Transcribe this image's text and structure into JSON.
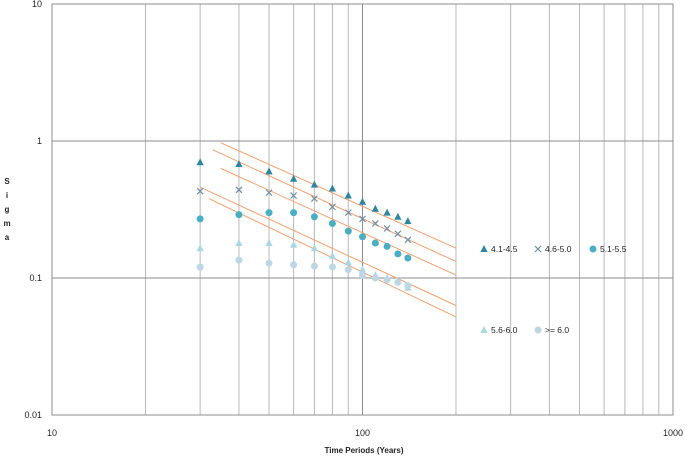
{
  "chart_data": {
    "type": "scatter",
    "title": "",
    "xlabel": "Time Periods (Years)",
    "ylabel": "Sigma",
    "ylabel_letters": [
      "S",
      "i",
      "g",
      "m",
      "a"
    ],
    "x_scale": "log",
    "y_scale": "log",
    "xlim": [
      10,
      1000
    ],
    "ylim": [
      0.01,
      10
    ],
    "x_tick_labels": [
      "10",
      "100",
      "1000"
    ],
    "y_tick_labels": [
      "0.01",
      "0.1",
      "1",
      "10"
    ],
    "grid": true,
    "legend_position": "right",
    "series": [
      {
        "name": "4.1-4.5",
        "marker": "triangle",
        "color": "#2E86A0",
        "x": [
          30,
          40,
          50,
          60,
          70,
          80,
          90,
          100,
          110,
          120,
          130,
          140
        ],
        "y": [
          0.7,
          0.68,
          0.6,
          0.53,
          0.48,
          0.45,
          0.4,
          0.36,
          0.32,
          0.3,
          0.28,
          0.26
        ]
      },
      {
        "name": "4.6-5.0",
        "marker": "x",
        "color": "#6E8FA8",
        "x": [
          30,
          40,
          50,
          60,
          70,
          80,
          90,
          100,
          110,
          120,
          130,
          140
        ],
        "y": [
          0.43,
          0.44,
          0.42,
          0.4,
          0.38,
          0.33,
          0.3,
          0.27,
          0.25,
          0.23,
          0.21,
          0.19
        ]
      },
      {
        "name": "5.1-5.5",
        "marker": "circle",
        "color": "#4AAFC2",
        "x": [
          30,
          40,
          50,
          60,
          70,
          80,
          90,
          100,
          110,
          120,
          130,
          140
        ],
        "y": [
          0.27,
          0.29,
          0.3,
          0.3,
          0.28,
          0.25,
          0.22,
          0.2,
          0.18,
          0.17,
          0.15,
          0.14
        ]
      },
      {
        "name": "5.6-6.0",
        "marker": "triangle",
        "color": "#A9D8E3",
        "x": [
          30,
          40,
          50,
          60,
          70,
          80,
          90,
          100,
          110,
          120,
          130,
          140
        ],
        "y": [
          0.165,
          0.18,
          0.18,
          0.175,
          0.165,
          0.145,
          0.13,
          0.115,
          0.105,
          0.1,
          0.095,
          0.085
        ]
      },
      {
        "name": ">= 6.0",
        "marker": "circle",
        "color": "#BDD7E4",
        "x": [
          30,
          40,
          50,
          60,
          70,
          80,
          90,
          100,
          110,
          120,
          130,
          140
        ],
        "y": [
          0.12,
          0.135,
          0.128,
          0.125,
          0.122,
          0.12,
          0.115,
          0.105,
          0.1,
          0.097,
          0.093,
          0.088
        ]
      }
    ],
    "trendlines": {
      "color": "#F0A070",
      "lines": [
        {
          "x": [
            35,
            200
          ],
          "y": [
            0.97,
            0.165
          ]
        },
        {
          "x": [
            33,
            200
          ],
          "y": [
            0.86,
            0.132
          ]
        },
        {
          "x": [
            35,
            200
          ],
          "y": [
            0.63,
            0.105
          ]
        },
        {
          "x": [
            30,
            200
          ],
          "y": [
            0.46,
            0.063
          ]
        },
        {
          "x": [
            32,
            200
          ],
          "y": [
            0.38,
            0.052
          ]
        }
      ]
    }
  }
}
